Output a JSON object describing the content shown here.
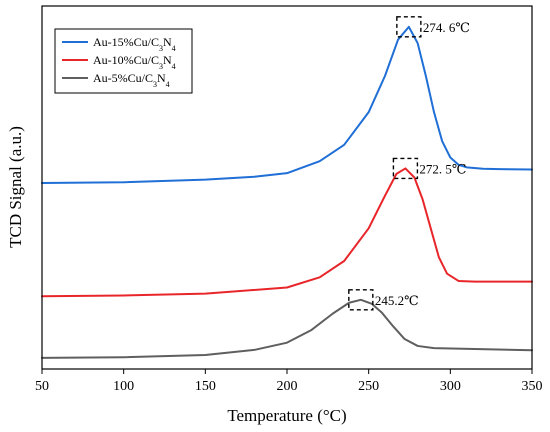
{
  "chart_data": {
    "type": "line",
    "xlabel": "Temperature (°C)",
    "ylabel": "TCD Signal (a.u.)",
    "xlim": [
      50,
      350
    ],
    "ylim": [
      0,
      100
    ],
    "xticks": [
      50,
      100,
      150,
      200,
      250,
      300,
      350
    ],
    "xtick_labels": [
      "50",
      "100",
      "150",
      "200",
      "250",
      "300",
      "350"
    ],
    "y_ticks_shown": false,
    "grid": false,
    "legend_position": "top-left",
    "series": [
      {
        "label_main": "Au-15%Cu/C",
        "label_sub1": "3",
        "label_mid": "N",
        "label_sub2": "4",
        "color": "#1f6fd6",
        "peak_x": 274.6,
        "peak_label": "274. 6℃",
        "x": [
          50,
          100,
          150,
          180,
          200,
          220,
          235,
          250,
          260,
          268,
          274.6,
          280,
          285,
          290,
          295,
          300,
          305,
          310,
          320,
          330,
          350
        ],
        "y": [
          48.5,
          48.7,
          49.4,
          50.2,
          51.2,
          54.5,
          59,
          68,
          78,
          88,
          91.5,
          87,
          78,
          68,
          60,
          55.5,
          53.5,
          52.8,
          52.4,
          52.3,
          52.2
        ]
      },
      {
        "label_main": "Au-10%Cu/C",
        "label_sub1": "3",
        "label_mid": "N",
        "label_sub2": "4",
        "color": "#e8262a",
        "peak_x": 272.5,
        "peak_label": "272. 5℃",
        "x": [
          50,
          100,
          150,
          200,
          220,
          235,
          250,
          260,
          267,
          272.5,
          278,
          283,
          288,
          293,
          298,
          305,
          315,
          350
        ],
        "y": [
          17.3,
          17.5,
          18,
          19.7,
          22.5,
          27,
          36,
          45,
          51,
          52.5,
          50,
          44,
          36,
          28,
          23.5,
          21.5,
          21.3,
          21.3
        ]
      },
      {
        "label_main": "Au-5%Cu/C",
        "label_sub1": "3",
        "label_mid": "N",
        "label_sub2": "4",
        "color": "#5f5f5f",
        "peak_x": 245.2,
        "peak_label": "245.2℃",
        "x": [
          50,
          100,
          150,
          180,
          200,
          215,
          228,
          238,
          245.2,
          252,
          258,
          265,
          272,
          280,
          290,
          350
        ],
        "y": [
          0.3,
          0.5,
          1.1,
          2.5,
          4.5,
          8,
          12.5,
          15.5,
          16.3,
          15.2,
          12.8,
          9,
          5.5,
          3.6,
          3,
          2.4
        ]
      }
    ]
  }
}
